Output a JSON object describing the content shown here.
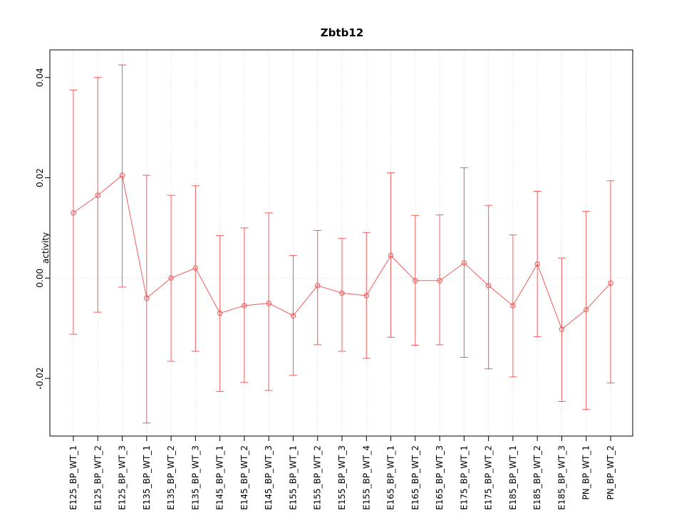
{
  "chart_data": {
    "type": "line",
    "subtype": "points-with-error-bars",
    "title": "Zbtb12",
    "xlabel": "",
    "ylabel": "activity",
    "ylim": [
      -0.0315,
      0.0455
    ],
    "yticks": [
      -0.02,
      0.0,
      0.02,
      0.04
    ],
    "grid": true,
    "zero_line": true,
    "legend_position": "none",
    "point_color": "#f25b5b",
    "grid_color": "#cfcfcf",
    "axis_color": "#000000",
    "categories": [
      "E125_BP_WT_1",
      "E125_BP_WT_2",
      "E125_BP_WT_3",
      "E135_BP_WT_1",
      "E135_BP_WT_2",
      "E135_BP_WT_3",
      "E145_BP_WT_1",
      "E145_BP_WT_2",
      "E145_BP_WT_3",
      "E155_BP_WT_1",
      "E155_BP_WT_2",
      "E155_BP_WT_3",
      "E155_BP_WT_4",
      "E165_BP_WT_1",
      "E165_BP_WT_2",
      "E165_BP_WT_3",
      "E175_BP_WT_1",
      "E175_BP_WT_2",
      "E185_BP_WT_1",
      "E185_BP_WT_2",
      "E185_BP_WT_3",
      "PN_BP_WT_1",
      "PN_BP_WT_2"
    ],
    "series": [
      {
        "name": "activity",
        "means": [
          0.013,
          0.0165,
          0.0205,
          -0.004,
          0.0,
          0.002,
          -0.007,
          -0.0055,
          -0.005,
          -0.0075,
          -0.0015,
          -0.003,
          -0.0035,
          0.0045,
          -0.0005,
          -0.0005,
          0.003,
          -0.0015,
          -0.0055,
          0.0028,
          -0.0102,
          -0.0063,
          -0.001
        ],
        "upper": [
          0.0375,
          0.04,
          0.0425,
          0.0205,
          0.0165,
          0.0184,
          0.0085,
          0.01,
          0.013,
          0.0045,
          0.0095,
          0.0079,
          0.0091,
          0.021,
          0.0125,
          0.0126,
          0.022,
          0.0145,
          0.0086,
          0.0173,
          0.004,
          0.0133,
          0.0194
        ],
        "lower": [
          -0.0112,
          -0.0068,
          -0.0018,
          -0.0289,
          -0.0166,
          -0.0146,
          -0.0226,
          -0.0208,
          -0.0224,
          -0.0194,
          -0.0133,
          -0.0146,
          -0.016,
          -0.0118,
          -0.0134,
          -0.0133,
          -0.0158,
          -0.0181,
          -0.0197,
          -0.0117,
          -0.0246,
          -0.0262,
          -0.0209
        ]
      }
    ]
  }
}
